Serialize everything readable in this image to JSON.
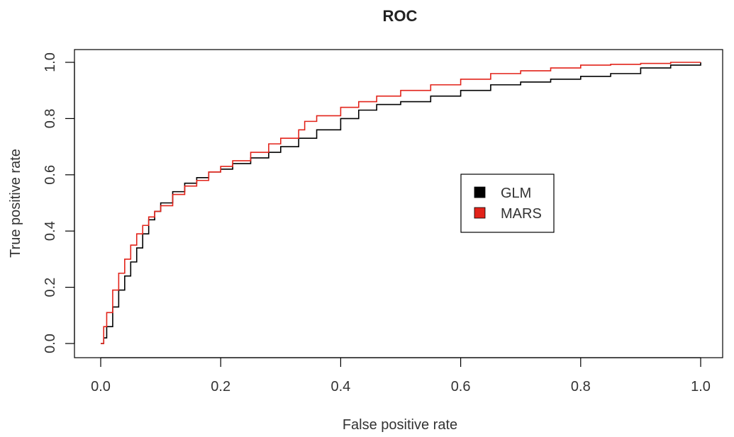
{
  "chart_data": {
    "type": "line",
    "title": "ROC",
    "xlabel": "False positive rate",
    "ylabel": "True positive rate",
    "xlim": [
      0,
      1
    ],
    "ylim": [
      0,
      1
    ],
    "xticks": [
      "0.0",
      "0.2",
      "0.4",
      "0.6",
      "0.8",
      "1.0"
    ],
    "yticks": [
      "0.0",
      "0.2",
      "0.4",
      "0.6",
      "0.8",
      "1.0"
    ],
    "grid": false,
    "legend_position": "center-right",
    "series": [
      {
        "name": "GLM",
        "color": "#000000",
        "x": [
          0.0,
          0.005,
          0.01,
          0.02,
          0.03,
          0.04,
          0.05,
          0.06,
          0.07,
          0.08,
          0.09,
          0.1,
          0.12,
          0.14,
          0.16,
          0.18,
          0.2,
          0.22,
          0.25,
          0.28,
          0.3,
          0.33,
          0.36,
          0.4,
          0.43,
          0.46,
          0.5,
          0.55,
          0.6,
          0.65,
          0.7,
          0.75,
          0.8,
          0.85,
          0.9,
          0.95,
          1.0
        ],
        "y": [
          0.0,
          0.02,
          0.06,
          0.13,
          0.19,
          0.24,
          0.29,
          0.34,
          0.39,
          0.44,
          0.47,
          0.5,
          0.54,
          0.57,
          0.59,
          0.61,
          0.62,
          0.64,
          0.66,
          0.68,
          0.7,
          0.73,
          0.76,
          0.8,
          0.83,
          0.85,
          0.86,
          0.88,
          0.9,
          0.92,
          0.93,
          0.94,
          0.95,
          0.96,
          0.98,
          0.99,
          1.0
        ]
      },
      {
        "name": "MARS",
        "color": "#e2231a",
        "x": [
          0.0,
          0.005,
          0.01,
          0.02,
          0.03,
          0.04,
          0.05,
          0.06,
          0.07,
          0.08,
          0.09,
          0.1,
          0.12,
          0.14,
          0.16,
          0.18,
          0.2,
          0.22,
          0.25,
          0.28,
          0.3,
          0.33,
          0.34,
          0.36,
          0.4,
          0.43,
          0.46,
          0.5,
          0.55,
          0.6,
          0.65,
          0.7,
          0.75,
          0.8,
          0.85,
          0.9,
          0.95,
          1.0
        ],
        "y": [
          0.0,
          0.06,
          0.11,
          0.19,
          0.25,
          0.3,
          0.35,
          0.39,
          0.42,
          0.45,
          0.47,
          0.49,
          0.53,
          0.56,
          0.58,
          0.61,
          0.63,
          0.65,
          0.68,
          0.71,
          0.73,
          0.76,
          0.79,
          0.81,
          0.84,
          0.86,
          0.88,
          0.9,
          0.92,
          0.94,
          0.96,
          0.97,
          0.98,
          0.99,
          0.993,
          0.996,
          1.0,
          1.0
        ]
      }
    ]
  }
}
